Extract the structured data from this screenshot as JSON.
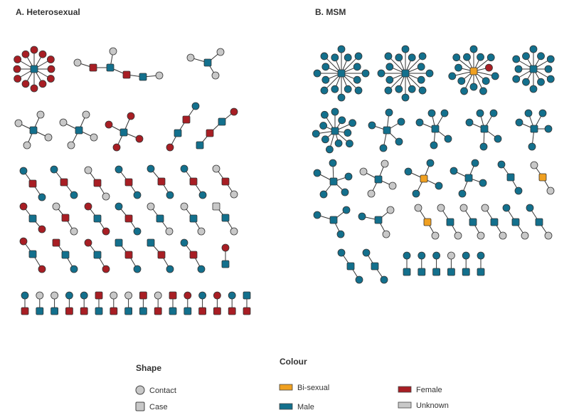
{
  "panels": [
    {
      "id": "panel-a",
      "title": "A. Heterosexual"
    },
    {
      "id": "panel-b",
      "title": "B. MSM"
    }
  ],
  "legend": {
    "shape_title": "Shape",
    "shape_items": [
      {
        "key": "contact",
        "label": "Contact"
      },
      {
        "key": "case",
        "label": "Case"
      }
    ],
    "colour_title": "Colour",
    "colour_items": [
      {
        "key": "bisexual",
        "label": "Bi-sexual",
        "color": "#f0a020"
      },
      {
        "key": "female",
        "label": "Female",
        "color": "#a81e24"
      },
      {
        "key": "male",
        "label": "Male",
        "color": "#13708d"
      },
      {
        "key": "unknown",
        "label": "Unknown",
        "color": "#c8c8c8"
      }
    ]
  },
  "colors": {
    "male": "#13708d",
    "female": "#a81e24",
    "bisexual": "#f0a020",
    "unknown": "#c8c8c8",
    "edge": "#333333"
  }
}
